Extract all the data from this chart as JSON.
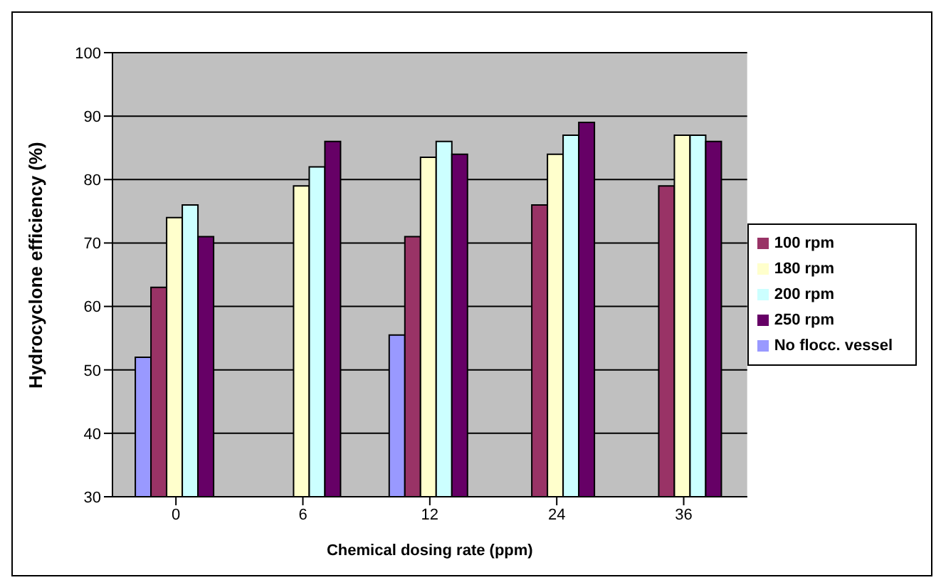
{
  "chart_data": {
    "type": "bar",
    "xlabel": "Chemical dosing rate (ppm)",
    "ylabel": "Hydrocyclone efficiency (%)",
    "categories": [
      "0",
      "6",
      "12",
      "24",
      "36"
    ],
    "series": [
      {
        "name": "No flocc. vessel",
        "color": "#9999ff",
        "values": [
          52,
          null,
          55.5,
          null,
          null
        ]
      },
      {
        "name": "100 rpm",
        "color": "#993366",
        "values": [
          63,
          null,
          71,
          76,
          79
        ]
      },
      {
        "name": "180 rpm",
        "color": "#ffffcc",
        "values": [
          74,
          79,
          83.5,
          84,
          87
        ]
      },
      {
        "name": "200 rpm",
        "color": "#ccffff",
        "values": [
          76,
          82,
          86,
          87,
          87
        ]
      },
      {
        "name": "250 rpm",
        "color": "#660066",
        "values": [
          71,
          86,
          84,
          89,
          86
        ]
      }
    ],
    "ylim": [
      30,
      100
    ],
    "yticks": [
      30,
      40,
      50,
      60,
      70,
      80,
      90,
      100
    ],
    "grid": "y",
    "legend": "right"
  }
}
